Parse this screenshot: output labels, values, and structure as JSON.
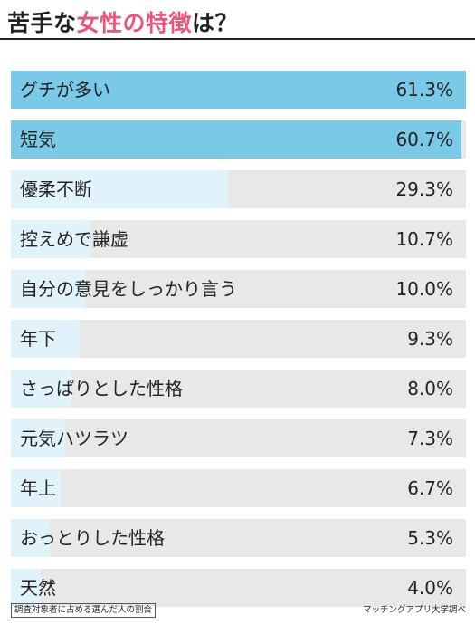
{
  "title": {
    "prefix": "苦手な",
    "emphasis": "女性の特徴",
    "suffix": "は？"
  },
  "colors": {
    "accent": "#e8567c",
    "highlight_fill": "#7ac9e6",
    "light_fill": "#e1f3fa",
    "track": "#e8e8e8"
  },
  "chart_data": {
    "type": "bar",
    "orientation": "horizontal",
    "categories": [
      "グチが多い",
      "短気",
      "優柔不断",
      "控えめで謙虚",
      "自分の意見をしっかり言う",
      "年下",
      "さっぱりとした性格",
      "元気ハツラツ",
      "年上",
      "おっとりした性格",
      "天然"
    ],
    "values": [
      61.3,
      60.7,
      29.3,
      10.7,
      10.0,
      9.3,
      8.0,
      7.3,
      6.7,
      5.3,
      4.0
    ],
    "value_labels": [
      "61.3%",
      "60.7%",
      "29.3%",
      "10.7%",
      "10.0%",
      "9.3%",
      "8.0%",
      "7.3%",
      "6.7%",
      "5.3%",
      "4.0%"
    ],
    "highlighted_count": 2,
    "xlim": [
      0,
      61.3
    ]
  },
  "footnote": "調査対象者に占める選んだ人の割合",
  "source": "マッチングアプリ大学調べ"
}
